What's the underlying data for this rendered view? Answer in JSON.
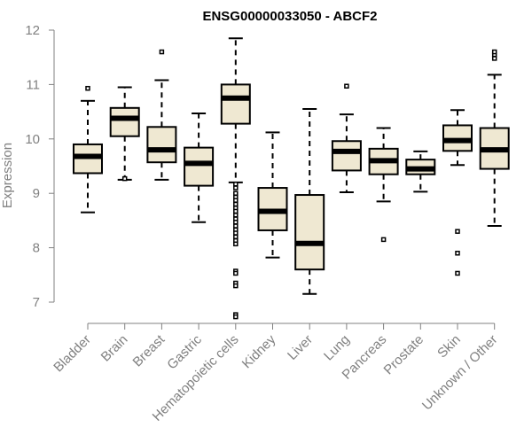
{
  "chart_data": {
    "type": "boxplot",
    "title": "ENSG00000033050 - ABCF2",
    "xlabel": "",
    "ylabel": "Expression",
    "ylim": [
      6.85,
      12.0
    ],
    "yticks": [
      7,
      8,
      9,
      10,
      11,
      12
    ],
    "box_fill": "#efe8d2",
    "categories": [
      "Bladder",
      "Brain",
      "Breast",
      "Gastric",
      "Hematopoietic cells",
      "Kidney",
      "Liver",
      "Lung",
      "Pancreas",
      "Prostate",
      "Skin",
      "Unknown / Other"
    ],
    "boxes": [
      {
        "category": "Bladder",
        "whisker_low": 8.65,
        "q1": 9.37,
        "median": 9.68,
        "q3": 9.9,
        "whisker_high": 10.7,
        "outliers": [
          10.93
        ]
      },
      {
        "category": "Brain",
        "whisker_low": 9.25,
        "q1": 10.05,
        "median": 10.38,
        "q3": 10.57,
        "whisker_high": 10.95,
        "outliers": [
          9.27
        ]
      },
      {
        "category": "Breast",
        "whisker_low": 9.25,
        "q1": 9.57,
        "median": 9.8,
        "q3": 10.22,
        "whisker_high": 11.08,
        "outliers": [
          11.6
        ]
      },
      {
        "category": "Gastric",
        "whisker_low": 8.47,
        "q1": 9.14,
        "median": 9.55,
        "q3": 9.84,
        "whisker_high": 10.47,
        "outliers": []
      },
      {
        "category": "Hematopoietic cells",
        "whisker_low": 9.2,
        "q1": 10.28,
        "median": 10.75,
        "q3": 11.0,
        "whisker_high": 11.85,
        "outliers": [
          9.17,
          9.1,
          9.0,
          8.93,
          8.87,
          8.8,
          8.73,
          8.67,
          8.6,
          8.53,
          8.47,
          8.4,
          8.33,
          8.27,
          8.2,
          8.13,
          8.07,
          7.57,
          7.53,
          7.35,
          7.3,
          6.77,
          6.73
        ]
      },
      {
        "category": "Kidney",
        "whisker_low": 7.82,
        "q1": 8.32,
        "median": 8.67,
        "q3": 9.1,
        "whisker_high": 10.12,
        "outliers": []
      },
      {
        "category": "Liver",
        "whisker_low": 7.15,
        "q1": 7.6,
        "median": 8.08,
        "q3": 8.97,
        "whisker_high": 10.55,
        "outliers": []
      },
      {
        "category": "Lung",
        "whisker_low": 9.02,
        "q1": 9.42,
        "median": 9.77,
        "q3": 9.96,
        "whisker_high": 10.45,
        "outliers": [
          10.97
        ]
      },
      {
        "category": "Pancreas",
        "whisker_low": 8.85,
        "q1": 9.35,
        "median": 9.6,
        "q3": 9.82,
        "whisker_high": 10.2,
        "outliers": [
          8.15
        ]
      },
      {
        "category": "Prostate",
        "whisker_low": 9.03,
        "q1": 9.35,
        "median": 9.45,
        "q3": 9.62,
        "whisker_high": 9.77,
        "outliers": []
      },
      {
        "category": "Skin",
        "whisker_low": 9.52,
        "q1": 9.78,
        "median": 9.97,
        "q3": 10.25,
        "whisker_high": 10.53,
        "outliers": [
          8.3,
          7.9,
          7.53
        ]
      },
      {
        "category": "Unknown / Other",
        "whisker_low": 8.4,
        "q1": 9.45,
        "median": 9.8,
        "q3": 10.2,
        "whisker_high": 11.18,
        "outliers": [
          11.48,
          11.55,
          11.6
        ]
      }
    ]
  }
}
